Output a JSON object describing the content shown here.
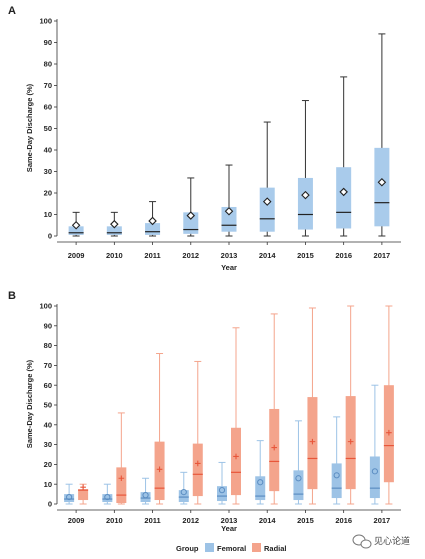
{
  "colors": {
    "femoral": "#9DC3E6",
    "radial": "#F4A48C",
    "radial_mark": "#E8563A",
    "femoral_mark": "#5B8DC2",
    "box_blue": "#A9CBEB",
    "axis": "#333333"
  },
  "watermark": {
    "icon": "wechat-icon",
    "text": "见心论道"
  },
  "chart_data": [
    {
      "type": "box",
      "panel": "A",
      "ylabel": "Same-Day Discharge (%)",
      "xlabel": "Year",
      "ylim": [
        0,
        100
      ],
      "yticks": [
        0,
        10,
        20,
        30,
        40,
        50,
        60,
        70,
        80,
        90,
        100
      ],
      "categories": [
        "2009",
        "2010",
        "2011",
        "2012",
        "2013",
        "2014",
        "2015",
        "2016",
        "2017"
      ],
      "series": [
        {
          "mean_marker": "diamond",
          "boxes": [
            {
              "min": 0,
              "q1": 0.5,
              "median": 1.5,
              "q3": 4.5,
              "max": 11,
              "mean": 5
            },
            {
              "min": 0,
              "q1": 0.5,
              "median": 1.5,
              "q3": 4.5,
              "max": 11,
              "mean": 5.5
            },
            {
              "min": 0,
              "q1": 0.5,
              "median": 2,
              "q3": 6,
              "max": 16,
              "mean": 7
            },
            {
              "min": 0,
              "q1": 1,
              "median": 3,
              "q3": 11,
              "max": 27,
              "mean": 9.5
            },
            {
              "min": 0,
              "q1": 2,
              "median": 5,
              "q3": 13.5,
              "max": 33,
              "mean": 11.5
            },
            {
              "min": 0,
              "q1": 2,
              "median": 8,
              "q3": 22.5,
              "max": 53,
              "mean": 16
            },
            {
              "min": 0,
              "q1": 3,
              "median": 10,
              "q3": 27,
              "max": 63,
              "mean": 19
            },
            {
              "min": 0,
              "q1": 3.5,
              "median": 11,
              "q3": 32,
              "max": 74,
              "mean": 20.5
            },
            {
              "min": 0,
              "q1": 4.5,
              "median": 15.5,
              "q3": 41,
              "max": 94,
              "mean": 25
            }
          ]
        }
      ]
    },
    {
      "type": "box",
      "panel": "B",
      "ylabel": "Same-Day Discharge (%)",
      "xlabel": "Year",
      "ylim": [
        0,
        100
      ],
      "yticks": [
        0,
        10,
        20,
        30,
        40,
        50,
        60,
        70,
        80,
        90,
        100
      ],
      "categories": [
        "2009",
        "2010",
        "2011",
        "2012",
        "2013",
        "2014",
        "2015",
        "2016",
        "2017"
      ],
      "legend_title": "Group",
      "legend_position": "bottom",
      "series": [
        {
          "name": "Femoral",
          "mean_marker": "circle",
          "boxes": [
            {
              "min": 0,
              "q1": 1,
              "median": 2.5,
              "q3": 5,
              "max": 10,
              "mean": 3.5
            },
            {
              "min": 0,
              "q1": 1,
              "median": 2.5,
              "q3": 5,
              "max": 10,
              "mean": 3.5
            },
            {
              "min": 0,
              "q1": 1,
              "median": 3,
              "q3": 6,
              "max": 13,
              "mean": 4.5
            },
            {
              "min": 0,
              "q1": 1,
              "median": 3.5,
              "q3": 7,
              "max": 16,
              "mean": 6
            },
            {
              "min": 0,
              "q1": 1.5,
              "median": 4,
              "q3": 9,
              "max": 21,
              "mean": 7
            },
            {
              "min": 0,
              "q1": 2,
              "median": 4,
              "q3": 14,
              "max": 32,
              "mean": 11
            },
            {
              "min": 0,
              "q1": 2,
              "median": 5,
              "q3": 17,
              "max": 42,
              "mean": 13
            },
            {
              "min": 0,
              "q1": 3,
              "median": 8,
              "q3": 20.5,
              "max": 44,
              "mean": 14.5
            },
            {
              "min": 0,
              "q1": 3,
              "median": 8,
              "q3": 24,
              "max": 60,
              "mean": 16.5
            }
          ]
        },
        {
          "name": "Radial",
          "mean_marker": "plus",
          "boxes": [
            {
              "min": 0,
              "q1": 2,
              "median": 7,
              "q3": 7.5,
              "max": 10,
              "mean": 8.5
            },
            {
              "min": 0,
              "q1": 0.5,
              "median": 4.5,
              "q3": 18.5,
              "max": 46,
              "mean": 13
            },
            {
              "min": 0,
              "q1": 2,
              "median": 8,
              "q3": 31.5,
              "max": 76,
              "mean": 17.5
            },
            {
              "min": 0,
              "q1": 4,
              "median": 15,
              "q3": 30.5,
              "max": 72,
              "mean": 20.5
            },
            {
              "min": 0,
              "q1": 4.5,
              "median": 16,
              "q3": 38.5,
              "max": 89,
              "mean": 24
            },
            {
              "min": 0,
              "q1": 6.5,
              "median": 21.5,
              "q3": 48,
              "max": 96,
              "mean": 28.5
            },
            {
              "min": 0,
              "q1": 7.5,
              "median": 23,
              "q3": 54,
              "max": 99,
              "mean": 31.5
            },
            {
              "min": 0,
              "q1": 7.5,
              "median": 23,
              "q3": 54.5,
              "max": 100,
              "mean": 31.5
            },
            {
              "min": 0,
              "q1": 11,
              "median": 29.5,
              "q3": 60,
              "max": 100,
              "mean": 36
            }
          ]
        }
      ]
    }
  ]
}
